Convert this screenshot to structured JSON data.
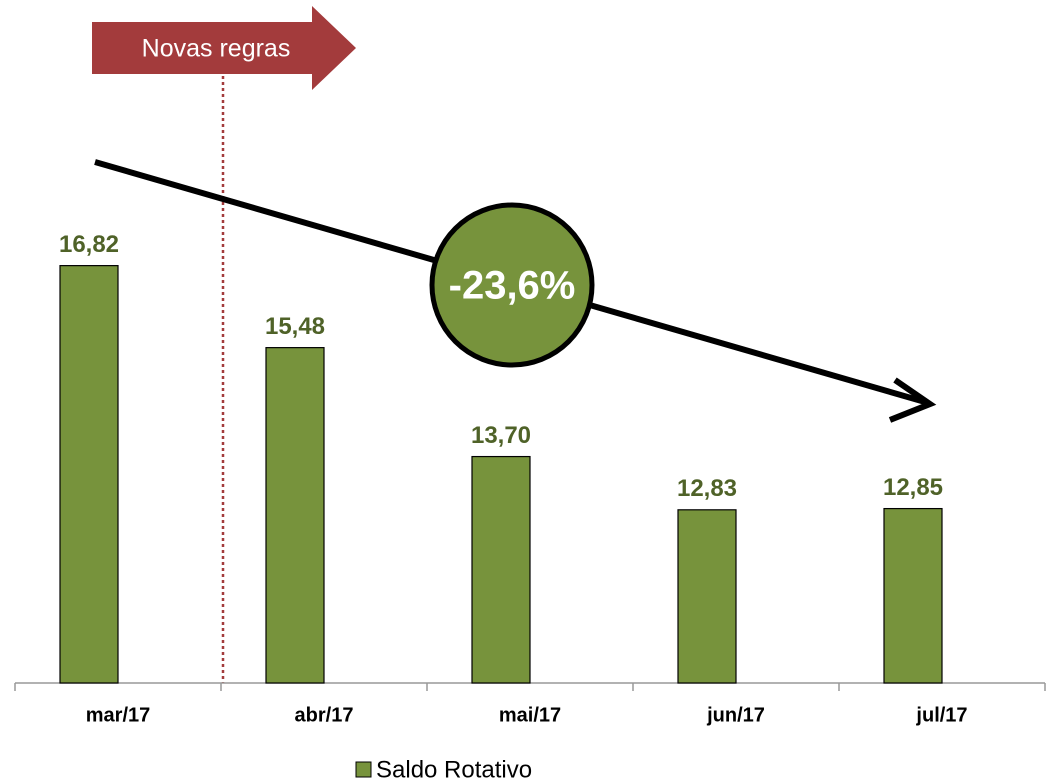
{
  "chart_data": {
    "type": "bar",
    "categories": [
      "mar/17",
      "abr/17",
      "mai/17",
      "jun/17",
      "jul/17"
    ],
    "series": [
      {
        "name": "Saldo Rotativo",
        "color": "#77933c",
        "values": [
          16.82,
          15.48,
          13.7,
          12.83,
          12.85
        ],
        "value_labels": [
          "16,82",
          "15,48",
          "13,70",
          "12,83",
          "12,85"
        ]
      }
    ],
    "ylim": [
      10,
      20
    ],
    "annotations": [
      "Novas regras",
      "-23,6%"
    ]
  }
}
